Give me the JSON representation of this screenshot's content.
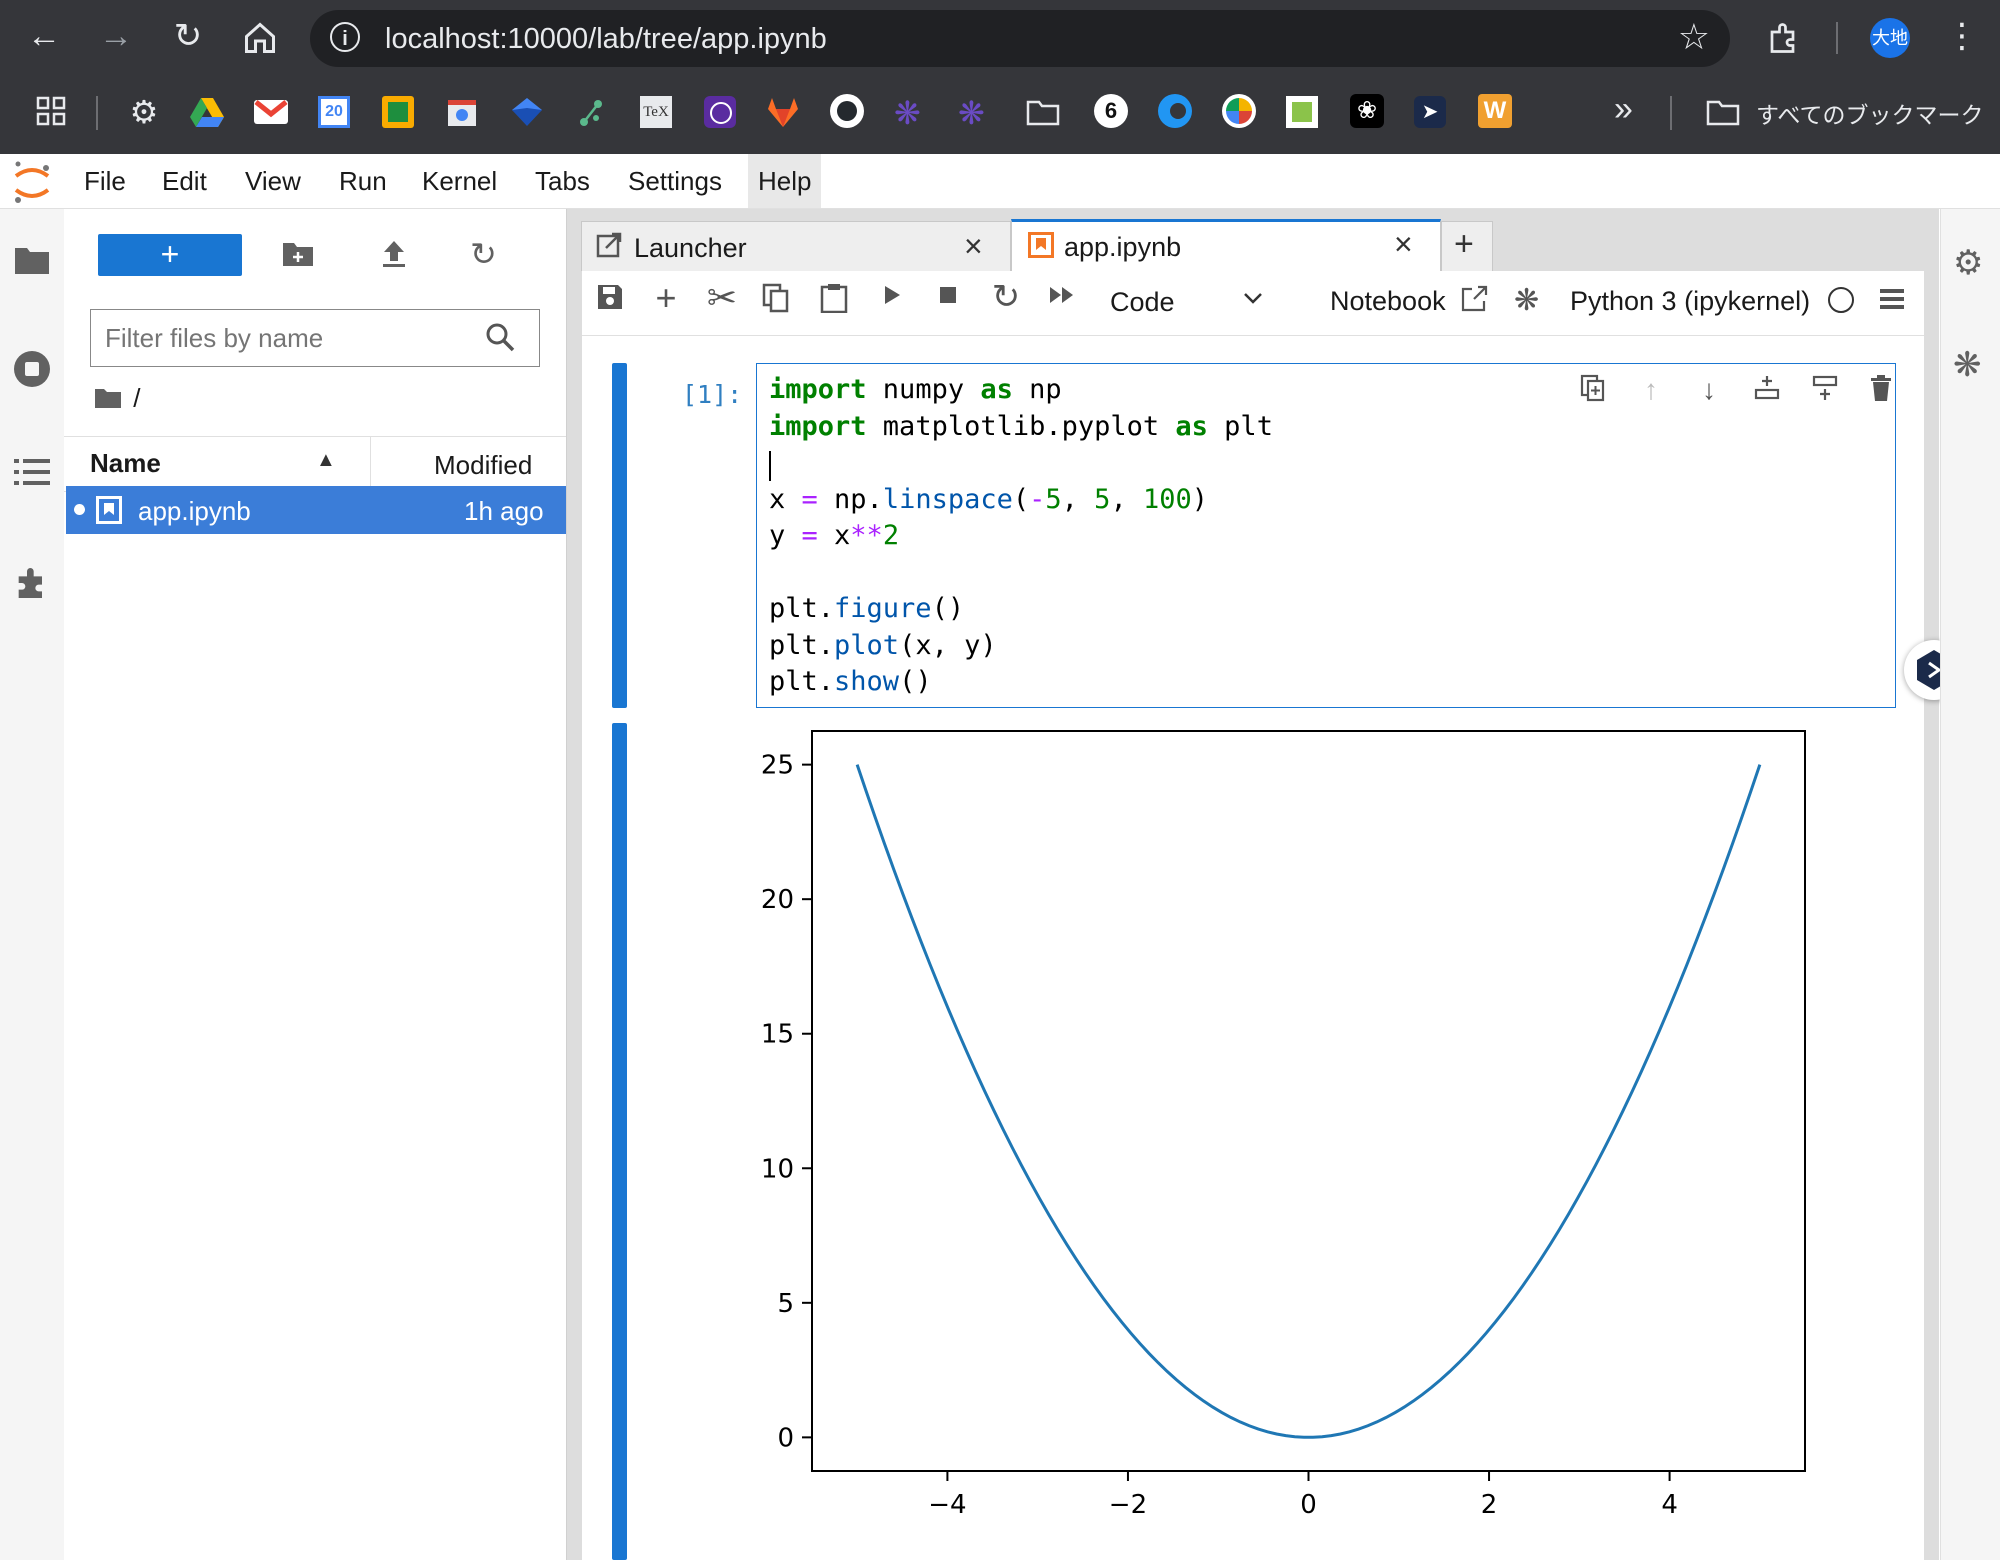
{
  "browser": {
    "url": "localhost:10000/lab/tree/app.ipynb",
    "avatar_text": "大地",
    "bookmarks_all_label": "すべてのブックマーク",
    "bookmark_icons": [
      "apps-icon",
      "gear-icon",
      "google-drive-icon",
      "gmail-icon",
      "calendar-icon",
      "classroom-icon",
      "chrome-web-store-icon",
      "bookmark-blue-icon",
      "git-icon",
      "tex-icon",
      "purple-logo-icon",
      "gitlab-icon",
      "github-icon",
      "bug-purple-icon",
      "bug-purple-icon-2",
      "folder-icon",
      "six-icon",
      "blue-arrow-icon",
      "pinwheel-icon",
      "green-logo-icon",
      "openai-icon",
      "deploy-icon",
      "w-icon"
    ],
    "overflow_label": "»"
  },
  "menu": [
    "File",
    "Edit",
    "View",
    "Run",
    "Kernel",
    "Tabs",
    "Settings",
    "Help"
  ],
  "file_browser": {
    "filter_placeholder": "Filter files by name",
    "breadcrumb": "/",
    "columns": {
      "name": "Name",
      "modified": "Modified"
    },
    "files": [
      {
        "name": "app.ipynb",
        "modified": "1h ago",
        "selected": true,
        "running": true
      }
    ]
  },
  "tabs": [
    {
      "label": "Launcher",
      "active": false
    },
    {
      "label": "app.ipynb",
      "active": true
    }
  ],
  "toolbar": {
    "cell_type": "Code",
    "notebook_label": "Notebook",
    "kernel": "Python 3 (ipykernel)"
  },
  "cell": {
    "prompt": "[1]:",
    "code_lines": [
      "import numpy as np",
      "import matplotlib.pyplot as plt",
      "",
      "x = np.linspace(-5, 5, 100)",
      "y = x**2",
      "",
      "plt.figure()",
      "plt.plot(x, y)",
      "plt.show()"
    ]
  },
  "colors": {
    "accent": "#1976d2",
    "line": "#1f77b4",
    "chrome_bg": "#35363a"
  },
  "chart_data": {
    "type": "line",
    "series": [
      {
        "expression": "y = x**2",
        "x_range": [
          -5,
          5
        ],
        "points": 100
      }
    ],
    "x_ticks": [
      -4,
      -2,
      0,
      2,
      4
    ],
    "y_ticks": [
      0,
      5,
      10,
      15,
      20,
      25
    ],
    "xlim": [
      -5.5,
      5.5
    ],
    "ylim": [
      -1.25,
      26.25
    ],
    "grid": false,
    "title": "",
    "xlabel": "",
    "ylabel": ""
  }
}
